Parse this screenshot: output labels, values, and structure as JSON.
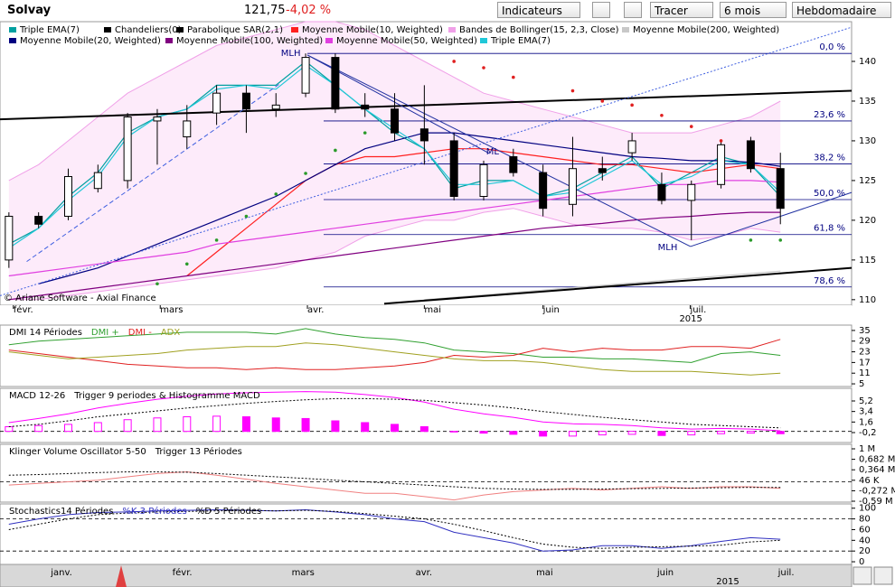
{
  "header": {
    "title": "Solvay",
    "price": "121,75",
    "change": "-4,02 %",
    "buttons": [
      "Indicateurs",
      "Tracer",
      "6 mois",
      "Hebdomadaire"
    ]
  },
  "chart_data": [
    {
      "type": "candlestick",
      "copyright": "© Ariane Software - Axial Finance",
      "xlim": [
        -0.3,
        28.4
      ],
      "ylim": [
        109.3,
        145
      ],
      "yticks": [
        110,
        115,
        120,
        125,
        130,
        135,
        140
      ],
      "xticks": [
        {
          "value": 0.15,
          "label": "févr."
        },
        {
          "value": 5.1,
          "label": "mars"
        },
        {
          "value": 10.06,
          "label": "avr."
        },
        {
          "value": 14.0,
          "label": "mai"
        },
        {
          "value": 18.0,
          "label": "juin"
        },
        {
          "value": 22.96,
          "label": "juil."
        }
      ],
      "year_label": {
        "value": 22.96,
        "label": "2015"
      },
      "series": [
        {
          "name": "Triple EMA(7)",
          "kind": "line",
          "color": "#00a0a0",
          "values": [
            117,
            119,
            123,
            126,
            131,
            133,
            134,
            137,
            137,
            137,
            140,
            137,
            134,
            131,
            129,
            124,
            125,
            125,
            123,
            124,
            126,
            128,
            124,
            126,
            128,
            127,
            123
          ]
        },
        {
          "name": "Chandeliers(0)",
          "kind": "candles",
          "color": "#000000",
          "open": [
            115,
            120.5,
            120.5,
            124,
            125,
            132.5,
            130.5,
            133.5,
            136,
            134,
            136,
            140.5,
            134.5,
            134,
            131.5,
            130,
            123,
            128,
            126,
            122,
            126.5,
            128.5,
            124.5,
            122.5,
            124.5,
            130,
            126.5
          ],
          "high": [
            121,
            121,
            126.5,
            127,
            133.5,
            134,
            134.5,
            137,
            137,
            136,
            141,
            141,
            136,
            136,
            137,
            131,
            127.5,
            129,
            127,
            130.5,
            128,
            131,
            126,
            125,
            130,
            130.5,
            128.5
          ],
          "low": [
            114,
            119,
            120,
            123.5,
            124,
            127,
            129,
            132,
            131,
            133,
            135.5,
            133.5,
            133,
            130,
            127,
            122.5,
            122.5,
            125.5,
            120.5,
            120.5,
            125,
            127.5,
            122,
            117.5,
            124,
            126,
            119.5
          ],
          "close": [
            120.5,
            119.5,
            125.5,
            126,
            133,
            133,
            132.5,
            136,
            134,
            134.5,
            140.5,
            134,
            134,
            131,
            130,
            123,
            127,
            126,
            121.5,
            126.5,
            126,
            130,
            122.5,
            124.5,
            129.5,
            126.5,
            121.5
          ]
        },
        {
          "name": "Parabolique SAR(2,1)",
          "kind": "dots",
          "up_color": "#2a9a2a",
          "down_color": "#e02020",
          "values": [
            null,
            null,
            null,
            null,
            null,
            112,
            114.5,
            117.5,
            120.5,
            123.3,
            125.9,
            128.8,
            131,
            null,
            null,
            140,
            139.2,
            138,
            null,
            136.3,
            135,
            134.5,
            133.2,
            131.8,
            130,
            117.5,
            117.5
          ]
        },
        {
          "name": "Moyenne Mobile(10, Weighted)",
          "kind": "line",
          "color": "#ff2020",
          "values": [
            null,
            null,
            null,
            null,
            null,
            null,
            113,
            116,
            119,
            122,
            125,
            127,
            128,
            128,
            128.5,
            129,
            129,
            128.5,
            128,
            127.5,
            127,
            127,
            126.5,
            126,
            126.5,
            127,
            126.5
          ]
        },
        {
          "name": "Bandes de Bollinger(15, 2,3, Close)",
          "kind": "bands",
          "color": "#f0a0e8",
          "fill": "#fdebfa",
          "upper": [
            125,
            127,
            130,
            133,
            136,
            138,
            140,
            142,
            143,
            144,
            145,
            145,
            144,
            142,
            140,
            138,
            136,
            135,
            134,
            133,
            132,
            131,
            131,
            131,
            132,
            133,
            135
          ],
          "lower": [
            110,
            110,
            110.5,
            111,
            111.5,
            112,
            112.5,
            113,
            113.5,
            114,
            115,
            116,
            118,
            119,
            120,
            120,
            121,
            121.5,
            120.5,
            119.5,
            119,
            119,
            118.5,
            117.5,
            118,
            119,
            118.5
          ]
        },
        {
          "name": "Moyenne Mobile(200, Weighted)",
          "kind": "line",
          "color": "#c8c8c8",
          "values": [
            null,
            null,
            null,
            null,
            null,
            null,
            null,
            null,
            null,
            null,
            null,
            null,
            null,
            null,
            110,
            110.3,
            110.6,
            110.9,
            111.2,
            111.5,
            111.8,
            112.1,
            112.4,
            112.7,
            113,
            113.3,
            113.6
          ]
        },
        {
          "name": "Moyenne Mobile(20, Weighted)",
          "kind": "line",
          "color": "#000080",
          "values": [
            null,
            112,
            113,
            114,
            115.5,
            117,
            118.5,
            120,
            121.5,
            123,
            125,
            127,
            129,
            130,
            131,
            131,
            130.5,
            130,
            129.5,
            129,
            128.5,
            128,
            127.8,
            127.5,
            127.5,
            127.3,
            126.8
          ]
        },
        {
          "name": "Moyenne Mobile(100, Weighted)",
          "kind": "line",
          "color": "#800080",
          "values": [
            110,
            110.5,
            111,
            111.5,
            112,
            112.5,
            113,
            113.5,
            114,
            114.5,
            115,
            115.5,
            116,
            116.5,
            117,
            117.5,
            118,
            118.5,
            119,
            119.3,
            119.6,
            120,
            120.3,
            120.5,
            120.8,
            121,
            121
          ]
        },
        {
          "name": "Moyenne Mobile(50, Weighted)",
          "kind": "line",
          "color": "#e040e0",
          "values": [
            113,
            113.5,
            114,
            114.5,
            115,
            115.5,
            116,
            117,
            117.5,
            118,
            118.5,
            119,
            119.5,
            120,
            120.5,
            121,
            121.5,
            122,
            122.5,
            123,
            123.5,
            124,
            124.5,
            124.5,
            125,
            125,
            124.8
          ]
        },
        {
          "name": "Triple EMA(7)",
          "kind": "line",
          "color": "#20c8d8",
          "values": [
            116.5,
            119,
            122.5,
            125.5,
            130.5,
            133,
            134,
            136.5,
            137,
            136.5,
            139.5,
            137,
            134,
            131.5,
            129,
            124.5,
            124.5,
            125,
            123,
            123.5,
            125.5,
            127.5,
            124.5,
            125.5,
            127.5,
            127,
            123.5
          ]
        }
      ],
      "fib_levels": [
        {
          "value": 141,
          "label": "0,0 %"
        },
        {
          "value": 132.5,
          "label": "23,6 %"
        },
        {
          "value": 127.1,
          "label": "38,2 %"
        },
        {
          "value": 122.6,
          "label": "50,0 %"
        },
        {
          "value": 118.2,
          "label": "61,8 %"
        },
        {
          "value": 111.6,
          "label": "78,6 %"
        }
      ],
      "trendlines": [
        {
          "color": "#000000",
          "width": 2,
          "dash": "solid",
          "points": [
            [
              -0.3,
              132.7
            ],
            [
              28.4,
              136.3
            ]
          ]
        },
        {
          "color": "#000000",
          "width": 2,
          "dash": "solid",
          "points": [
            [
              12.65,
              109.5
            ],
            [
              28.4,
              114
            ]
          ]
        },
        {
          "color": "#4060e0",
          "width": 1,
          "dash": "dashed",
          "points": [
            [
              0.6,
              114.8
            ],
            [
              9.1,
              137.1
            ]
          ]
        },
        {
          "color": "#4060e0",
          "width": 1,
          "dash": "dotted",
          "points": [
            [
              -0.3,
              110.5
            ],
            [
              28.4,
              144.3
            ]
          ]
        },
        {
          "color": "#2030a0",
          "width": 1,
          "dash": "solid",
          "points": [
            [
              10.06,
              140.8
            ],
            [
              22.97,
              116.7
            ]
          ]
        },
        {
          "color": "#2030a0",
          "width": 1,
          "dash": "solid",
          "points": [
            [
              22.97,
              116.7
            ],
            [
              28.4,
              123.5
            ]
          ]
        },
        {
          "color": "#2030a0",
          "width": 1,
          "dash": "solid",
          "points": [
            [
              10.06,
              140.8
            ],
            [
              16.2,
              128.4
            ]
          ]
        }
      ],
      "annotations": [
        {
          "text": "MLH",
          "x": 9.5,
          "y": 141
        },
        {
          "text": "ML",
          "x": 16.3,
          "y": 128.6
        },
        {
          "text": "MLH",
          "x": 22.2,
          "y": 116.6
        }
      ]
    },
    {
      "type": "line",
      "title": "DMI 14 Périodes",
      "ylim": [
        3.5,
        38
      ],
      "yticks": [
        5,
        11,
        17,
        23,
        29,
        35
      ],
      "series": [
        {
          "name": "DMI +",
          "color": "#30a030",
          "values": [
            27,
            29,
            30,
            31,
            32,
            33,
            34,
            34,
            34,
            33,
            36,
            33,
            31,
            30,
            28,
            24,
            23,
            22,
            20,
            20,
            19,
            19,
            18,
            17,
            22,
            23,
            21
          ]
        },
        {
          "name": "DMI -",
          "color": "#e02020",
          "values": [
            24,
            22,
            20,
            18,
            16,
            15,
            14,
            14,
            13,
            14,
            13,
            13,
            14,
            15,
            17,
            21,
            20,
            21,
            25,
            23,
            25,
            24,
            24,
            26,
            26,
            25,
            30
          ]
        },
        {
          "name": "ADX",
          "color": "#a0a020",
          "values": [
            23,
            21,
            19,
            20,
            21,
            22,
            24,
            25,
            26,
            26,
            28,
            27,
            25,
            23,
            21,
            19,
            18,
            18,
            17,
            15,
            13,
            12,
            12,
            12,
            11,
            10,
            11
          ]
        }
      ]
    },
    {
      "type": "line",
      "title": "MACD 12-26",
      "ylim": [
        -1.9,
        7.36
      ],
      "yticks": [
        {
          "value": -0.2,
          "label": "-0,2"
        },
        {
          "value": 1.6,
          "label": "1,6"
        },
        {
          "value": 3.4,
          "label": "3,4"
        },
        {
          "value": 5.2,
          "label": "5,2"
        }
      ],
      "levels": [
        0
      ],
      "histogram": {
        "color": "#ff00ff",
        "values": [
          0.8,
          1.0,
          1.2,
          1.5,
          2.0,
          2.3,
          2.5,
          2.6,
          2.5,
          2.3,
          2.2,
          1.8,
          1.5,
          1.2,
          0.8,
          -0.1,
          -0.3,
          -0.5,
          -0.8,
          -0.8,
          -0.6,
          -0.5,
          -0.7,
          -0.6,
          -0.4,
          -0.3,
          -0.4
        ]
      },
      "series": [
        {
          "color": "#ff00ff",
          "values": [
            1.5,
            2.2,
            3.0,
            4.0,
            4.8,
            5.5,
            6.0,
            6.4,
            6.6,
            6.7,
            6.8,
            6.7,
            6.3,
            5.8,
            5.0,
            3.8,
            3.0,
            2.4,
            1.6,
            1.3,
            1.2,
            1.0,
            0.6,
            0.4,
            0.5,
            0.4,
            0.1
          ]
        },
        {
          "name": "Trigger 9 periodes & Histogramme MACD",
          "color": "#000000",
          "dash": "dotted",
          "values": [
            0.8,
            1.2,
            1.8,
            2.5,
            3.0,
            3.5,
            4.0,
            4.4,
            4.8,
            5.1,
            5.4,
            5.6,
            5.6,
            5.5,
            5.3,
            4.9,
            4.5,
            4.0,
            3.4,
            2.9,
            2.4,
            2.0,
            1.6,
            1.2,
            1.0,
            0.8,
            0.6
          ]
        }
      ]
    },
    {
      "type": "line",
      "title": "Klinger Volume Oscillator 5-50",
      "ylim": [
        -617000,
        1137000
      ],
      "yticks": [
        {
          "value": -590000,
          "label": "-0,59 M"
        },
        {
          "value": -272000,
          "label": "-0,272 M"
        },
        {
          "value": 46000,
          "label": "46 K"
        },
        {
          "value": 364000,
          "label": "0,364 M"
        },
        {
          "value": 682000,
          "label": "0,682 M"
        },
        {
          "value": 1000000,
          "label": "1 M"
        }
      ],
      "levels": [
        0
      ],
      "series": [
        {
          "color": "#f08080",
          "values": [
            -100000,
            -50000,
            0,
            50000,
            150000,
            250000,
            300000,
            200000,
            80000,
            -50000,
            -150000,
            -250000,
            -350000,
            -350000,
            -450000,
            -550000,
            -400000,
            -300000,
            -250000,
            -200000,
            -250000,
            -200000,
            -150000,
            -200000,
            -150000,
            -150000,
            -200000
          ]
        },
        {
          "name": "Trigger 13 Périodes",
          "color": "#000000",
          "dash": "dotted",
          "values": [
            200000,
            220000,
            250000,
            280000,
            300000,
            300000,
            290000,
            250000,
            200000,
            150000,
            100000,
            50000,
            0,
            -50000,
            -100000,
            -150000,
            -200000,
            -220000,
            -230000,
            -230000,
            -220000,
            -210000,
            -200000,
            -190000,
            -180000,
            -170000,
            -170000
          ]
        }
      ]
    },
    {
      "type": "line",
      "title": "Stochastics14 Périodes",
      "ylim": [
        -5,
        108
      ],
      "yticks": [
        0,
        20,
        40,
        60,
        80,
        100
      ],
      "levels": [
        20,
        80
      ],
      "series": [
        {
          "name": "%K 3 Périodes",
          "color": "#3030c0",
          "values": [
            70,
            80,
            88,
            92,
            93,
            95,
            96,
            97,
            96,
            95,
            97,
            93,
            88,
            80,
            75,
            55,
            45,
            35,
            20,
            22,
            30,
            30,
            25,
            30,
            38,
            45,
            42
          ]
        },
        {
          "name": "%D 5 Périodes",
          "color": "#000000",
          "dash": "dotted",
          "values": [
            60,
            70,
            80,
            88,
            91,
            93,
            94,
            95,
            96,
            95,
            96,
            94,
            90,
            85,
            80,
            70,
            58,
            45,
            33,
            27,
            25,
            27,
            28,
            29,
            31,
            37,
            40
          ]
        }
      ]
    }
  ],
  "navigator": {
    "labels": [
      "janv.",
      "févr.",
      "mars",
      "avr.",
      "mai",
      "juin",
      "juil."
    ],
    "year": "2015"
  }
}
